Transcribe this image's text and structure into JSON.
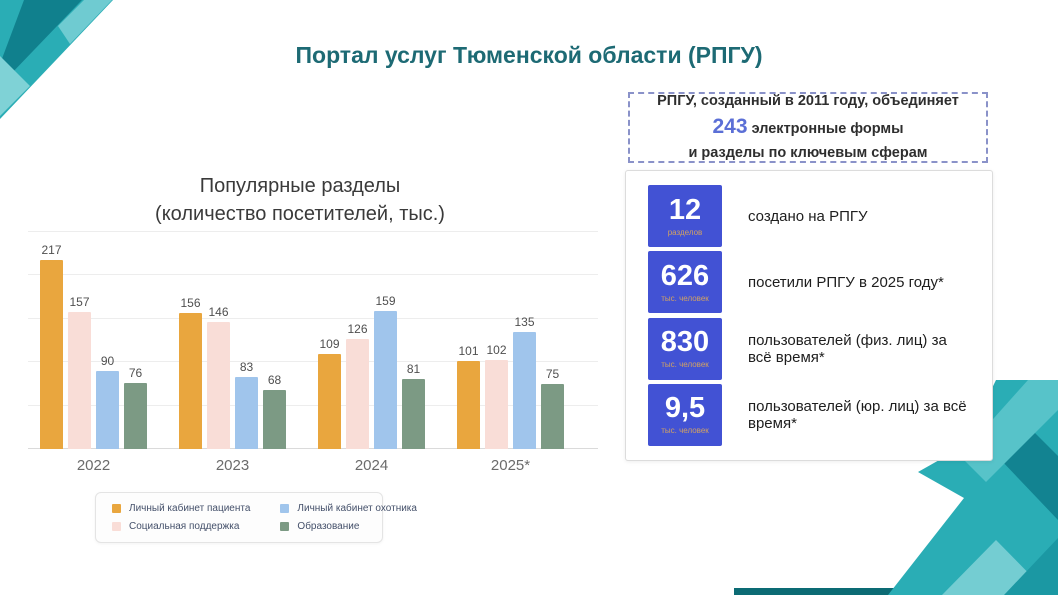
{
  "slide": {
    "title": "Портал услуг Тюменской области (РПГУ)"
  },
  "chart": {
    "title_line1": "Популярные разделы",
    "title_line2": "(количество посетителей, тыс.)"
  },
  "chart_data": {
    "type": "bar",
    "title": "Популярные разделы (количество посетителей, тыс.)",
    "categories": [
      "2022",
      "2023",
      "2024",
      "2025*"
    ],
    "series": [
      {
        "name": "Личный кабинет пациента",
        "color": "#E9A63E",
        "values": [
          217,
          156,
          109,
          101
        ]
      },
      {
        "name": "Социальная поддержка",
        "color": "#F9DDD7",
        "values": [
          157,
          146,
          126,
          102
        ]
      },
      {
        "name": "Личный кабинет охотника",
        "color": "#A0C5EC",
        "values": [
          90,
          83,
          159,
          135
        ]
      },
      {
        "name": "Образование",
        "color": "#7C9A84",
        "values": [
          76,
          68,
          81,
          75
        ]
      }
    ],
    "xlabel": "",
    "ylabel": "",
    "ylim": [
      0,
      250
    ],
    "grid": true,
    "legend_position": "bottom",
    "value_labels": true
  },
  "info_box": {
    "line1": "РПГУ, созданный в 2011 году, объединяет",
    "highlight": "243",
    "line2_rest": " электронные формы",
    "line3": "и разделы по ключевым сферам"
  },
  "stats": [
    {
      "value": "12",
      "unit": "разделов",
      "label": "создано на РПГУ"
    },
    {
      "value": "626",
      "unit": "тыс. человек",
      "label": "посетили РПГУ в 2025 году*"
    },
    {
      "value": "830",
      "unit": "тыс. человек",
      "label": "пользователей (физ. лиц) за всё время*"
    },
    {
      "value": "9,5",
      "unit": "тыс. человек",
      "label": "пользователей (юр. лиц) за всё время*"
    }
  ],
  "colors": {
    "title_teal": "#1d6a74",
    "tile_blue": "#4252d4",
    "tile_unit_tan": "#d2a263",
    "highlight_blue": "#5b6fd6",
    "dashed_border": "#8a92c9",
    "deco_teal_dark": "#10808d",
    "deco_teal_medium": "#2aadb5",
    "deco_teal_light": "#7fd2d6"
  }
}
